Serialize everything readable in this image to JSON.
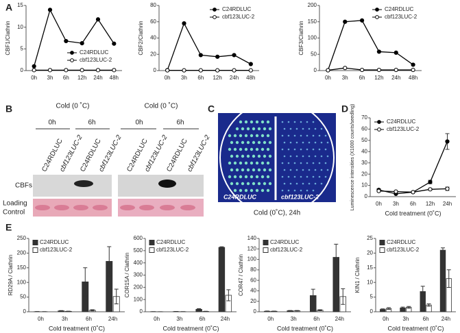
{
  "panel_labels": [
    "A",
    "B",
    "C",
    "D",
    "E"
  ],
  "blot": {
    "conditions": [
      "Cold (0 ˚C)",
      "Cold (0 ˚C)"
    ],
    "timepoints": [
      "0h",
      "6h",
      "0h",
      "6h"
    ],
    "lanes": [
      "C24RDLUC",
      "cbf123LUC-2",
      "C24RDLUC",
      "cbf123LUC-2",
      "C24RDLUC",
      "cbf123LUC-2",
      "C24RDLUC",
      "cbf123LUC-2"
    ],
    "row_label": "CBFs",
    "loading_label_lines": [
      "Loading",
      "Control"
    ]
  },
  "plate": {
    "left_label": "C24RDLUC",
    "right_label": "cbf123LUC-2",
    "caption": "Cold (0˚C), 24h"
  },
  "chart_data": [
    {
      "type": "line",
      "ylabel": "CBF1/Clathrin",
      "categories": [
        "0h",
        "3h",
        "6h",
        "12h",
        "24h",
        "48h"
      ],
      "series": [
        {
          "name": "C24RDLUC",
          "color": "#000000",
          "values": [
            1,
            14,
            6.8,
            6.3,
            11.8,
            6.2
          ]
        },
        {
          "name": "cbf123LUC-2",
          "color": "#ffffff",
          "values": [
            0.1,
            0.1,
            0.1,
            0.1,
            0.1,
            0.1
          ]
        }
      ],
      "ylim": [
        0,
        15
      ],
      "yticks": [
        0,
        5,
        10,
        15
      ],
      "legend": "lower-right"
    },
    {
      "type": "line",
      "ylabel": "CBF2/Clathrin",
      "categories": [
        "0h",
        "3h",
        "6h",
        "12h",
        "24h",
        "48h"
      ],
      "series": [
        {
          "name": "C24RDLUC",
          "color": "#000000",
          "values": [
            0.5,
            58,
            19,
            17,
            19,
            8
          ]
        },
        {
          "name": "cbf123LUC-2",
          "color": "#ffffff",
          "values": [
            0.3,
            0.3,
            0.3,
            0.3,
            0.3,
            0.3
          ]
        }
      ],
      "ylim": [
        0,
        80
      ],
      "yticks": [
        0,
        20,
        40,
        60,
        80
      ],
      "legend": "top-right"
    },
    {
      "type": "line",
      "ylabel": "CBF3/Clathrin",
      "categories": [
        "0h",
        "3h",
        "6h",
        "12h",
        "24h",
        "48h"
      ],
      "series": [
        {
          "name": "C24RDLUC",
          "color": "#000000",
          "values": [
            1,
            150,
            154,
            58,
            55,
            18
          ]
        },
        {
          "name": "cbf123LUC-2",
          "color": "#ffffff",
          "values": [
            1,
            8,
            2,
            2,
            2,
            2
          ]
        }
      ],
      "ylim": [
        0,
        200
      ],
      "yticks": [
        0,
        50,
        100,
        150,
        200
      ],
      "legend": "top-right"
    },
    {
      "type": "line",
      "ylabel": "Luminescence intensities (X1000 counts/seedling)",
      "xlabel": "Cold treatment (0˚C)",
      "categories": [
        "0h",
        "3h",
        "6h",
        "12h",
        "24h"
      ],
      "series": [
        {
          "name": "C24RDLUC",
          "color": "#000000",
          "values": [
            6,
            2.5,
            4,
            13,
            49
          ],
          "errors": [
            1,
            0.5,
            0.5,
            1.5,
            7
          ]
        },
        {
          "name": "cbf123LUC-2",
          "color": "#ffffff",
          "values": [
            5,
            4.5,
            4,
            6.5,
            7
          ],
          "errors": [
            0.5,
            0.5,
            0.5,
            0.8,
            1.5
          ]
        }
      ],
      "ylim": [
        0,
        70
      ],
      "yticks": [
        0,
        10,
        20,
        30,
        40,
        50,
        60,
        70
      ],
      "legend": "top-left"
    },
    {
      "type": "bar",
      "ylabel": "RD29A / Clathrin",
      "xlabel": "Cold treatment (0˚C)",
      "categories": [
        "0h",
        "3h",
        "6h",
        "24h"
      ],
      "series": [
        {
          "name": "C24RDLUC",
          "color": "#333333",
          "values": [
            0.5,
            3,
            102,
            172
          ],
          "errors": [
            0.3,
            1,
            48,
            50
          ]
        },
        {
          "name": "cbf123LUC-2",
          "color": "#ffffff",
          "values": [
            0.3,
            1.5,
            5,
            52
          ],
          "errors": [
            0.2,
            0.5,
            2,
            25
          ]
        }
      ],
      "ylim": [
        0,
        250
      ],
      "yticks": [
        0,
        50,
        100,
        150,
        200,
        250
      ],
      "legend": "top-left"
    },
    {
      "type": "bar",
      "ylabel": "COR15A / Clathrin",
      "xlabel": "Cold treatment (0˚C)",
      "categories": [
        "0h",
        "3h",
        "6h",
        "24h"
      ],
      "series": [
        {
          "name": "C24RDLUC",
          "color": "#333333",
          "values": [
            1,
            2,
            20,
            527
          ],
          "errors": [
            0.5,
            1,
            5,
            5
          ]
        },
        {
          "name": "cbf123LUC-2",
          "color": "#ffffff",
          "values": [
            0.5,
            1,
            3,
            135
          ],
          "errors": [
            0.3,
            0.5,
            1,
            45
          ]
        }
      ],
      "ylim": [
        0,
        600
      ],
      "yticks": [
        0,
        100,
        200,
        300,
        400,
        500,
        600
      ],
      "legend": "top-left"
    },
    {
      "type": "bar",
      "ylabel": "COR47 / Clathrin",
      "xlabel": "Cold treatment (0˚C)",
      "categories": [
        "0h",
        "3h",
        "6h",
        "24h"
      ],
      "series": [
        {
          "name": "C24RDLUC",
          "color": "#333333",
          "values": [
            1,
            2,
            31,
            104
          ],
          "errors": [
            0.5,
            0.5,
            12,
            25
          ]
        },
        {
          "name": "cbf123LUC-2",
          "color": "#ffffff",
          "values": [
            1,
            2,
            3,
            29
          ],
          "errors": [
            0.3,
            0.5,
            1,
            15
          ]
        }
      ],
      "ylim": [
        0,
        140
      ],
      "yticks": [
        0,
        20,
        40,
        60,
        80,
        100,
        120,
        140
      ],
      "legend": "top-left"
    },
    {
      "type": "bar",
      "ylabel": "KIN1 / Clathrin",
      "xlabel": "Cold treatment (0˚C)",
      "categories": [
        "0h",
        "3h",
        "6h",
        "24h"
      ],
      "series": [
        {
          "name": "C24RDLUC",
          "color": "#333333",
          "values": [
            0.8,
            1.3,
            6.9,
            21
          ],
          "errors": [
            0.2,
            0.3,
            1.8,
            0.8
          ]
        },
        {
          "name": "cbf123LUC-2",
          "color": "#ffffff",
          "values": [
            1.1,
            1.5,
            2.3,
            11.3
          ],
          "errors": [
            0.3,
            0.3,
            0.4,
            3
          ]
        }
      ],
      "ylim": [
        0,
        25
      ],
      "yticks": [
        0,
        5,
        10,
        15,
        20,
        25
      ],
      "legend": "top-left"
    }
  ]
}
